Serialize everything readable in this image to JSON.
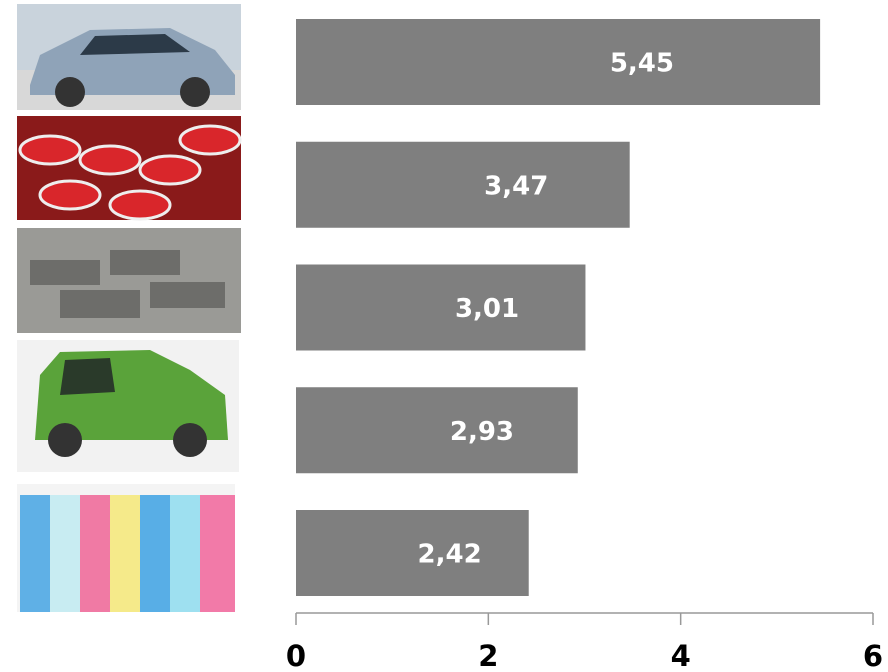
{
  "chart_data": {
    "type": "bar",
    "orientation": "horizontal",
    "categories": [
      null,
      null,
      null,
      null,
      null
    ],
    "values": [
      5.45,
      3.47,
      3.01,
      2.93,
      2.42
    ],
    "value_labels": [
      "5,45",
      "3,47",
      "3,01",
      "2,93",
      "2,42"
    ],
    "color": "#7f7f7f",
    "xlim": [
      0,
      6
    ],
    "xticks": [
      0,
      2,
      4,
      6
    ],
    "grid": false
  }
}
